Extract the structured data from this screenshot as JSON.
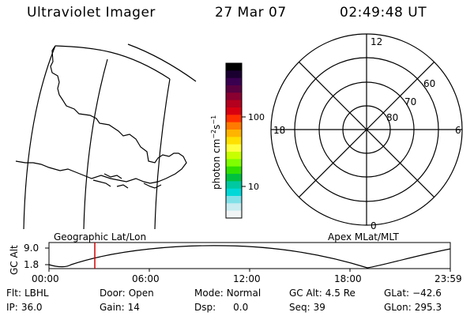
{
  "header": {
    "title": "Ultraviolet Imager",
    "date": "27 Mar 07",
    "time": "02:49:48 UT"
  },
  "colorbar": {
    "unit_label": "photon cm",
    "unit_sup1": "−2",
    "unit_mid": "s",
    "unit_sup2": "−1",
    "ticks": [
      "100",
      "10"
    ],
    "colors": [
      "#000000",
      "#1a0030",
      "#3a0050",
      "#5a0040",
      "#8a0030",
      "#b4001e",
      "#d80010",
      "#ff3000",
      "#ff7a00",
      "#ffb400",
      "#ffe000",
      "#ffff40",
      "#c8ff00",
      "#80ff00",
      "#30e000",
      "#00c040",
      "#00c8a0",
      "#00d8d8",
      "#80e0e8",
      "#c8ecf0",
      "#f0f4f4"
    ]
  },
  "polar": {
    "mlt_labels": {
      "top": "12",
      "left": "18",
      "right": "6",
      "bottom": "0"
    },
    "lat_labels": [
      "60",
      "70",
      "80"
    ]
  },
  "timeline": {
    "y_axis_label": "GC Alt",
    "y_ticks": [
      "9.0",
      "1.8"
    ],
    "left_title": "Geographic Lat/Lon",
    "right_title": "Apex MLat/MLT",
    "x_ticks": [
      "00:00",
      "06:00",
      "12:00",
      "18:00",
      "23:59"
    ],
    "marker_color": "#d00000"
  },
  "status": {
    "flt_label": "Flt:",
    "flt_value": "LBHL",
    "door_label": "Door:",
    "door_value": "Open",
    "mode_label": "Mode:",
    "mode_value": "Normal",
    "gcalt_label": "GC Alt:",
    "gcalt_value": "4.5 Re",
    "glat_label": "GLat:",
    "glat_value": "−42.6",
    "ip_label": "IP:",
    "ip_value": "36.0",
    "gain_label": "Gain:",
    "gain_value": "14",
    "dsp_label": "Dsp:",
    "dsp_value": "0.0",
    "seq_label": "Seq:",
    "seq_value": "39",
    "glon_label": "GLon:",
    "glon_value": "295.3"
  }
}
